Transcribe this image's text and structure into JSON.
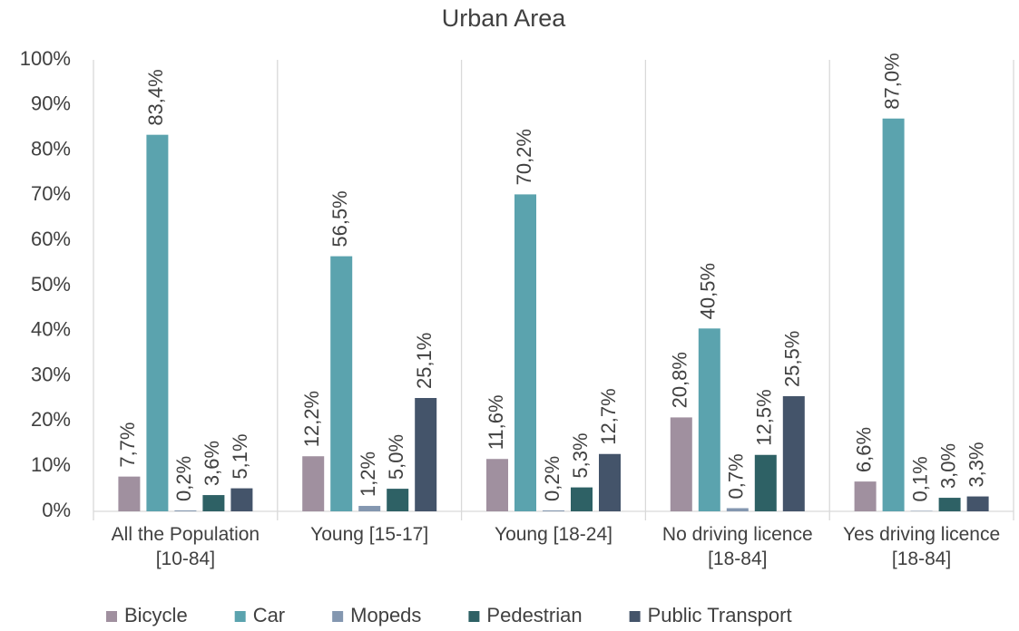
{
  "chart_data": {
    "type": "grouped_bar",
    "title": "Urban Area",
    "categories": [
      "All the Population\n[10-84]",
      "Young [15-17]",
      "Young [18-24]",
      "No driving licence\n[18-84]",
      "Yes driving licence\n[18-84]"
    ],
    "series": [
      {
        "name": "Bicycle",
        "color": "#a0909f",
        "values": [
          7.7,
          12.2,
          11.6,
          20.8,
          6.6
        ],
        "value_labels": [
          "7,7%",
          "12,2%",
          "11,6%",
          "20,8%",
          "6,6%"
        ]
      },
      {
        "name": "Car",
        "color": "#5ba3ae",
        "values": [
          83.4,
          56.5,
          70.2,
          40.5,
          87.0
        ],
        "value_labels": [
          "83,4%",
          "56,5%",
          "70,2%",
          "40,5%",
          "87,0%"
        ]
      },
      {
        "name": "Mopeds",
        "color": "#8497b0",
        "values": [
          0.2,
          1.2,
          0.2,
          0.7,
          0.1
        ],
        "value_labels": [
          "0,2%",
          "1,2%",
          "0,2%",
          "0,7%",
          "0,1%"
        ]
      },
      {
        "name": "Pedestrian",
        "color": "#2e6165",
        "values": [
          3.6,
          5.0,
          5.3,
          12.5,
          3.0
        ],
        "value_labels": [
          "3,6%",
          "5,0%",
          "5,3%",
          "12,5%",
          "3,0%"
        ]
      },
      {
        "name": "Public Transport",
        "color": "#44546a",
        "values": [
          5.1,
          25.1,
          12.7,
          25.5,
          3.3
        ],
        "value_labels": [
          "5,1%",
          "25,1%",
          "12,7%",
          "25,5%",
          "3,3%"
        ]
      }
    ],
    "ylim": [
      0,
      100
    ],
    "yticks": [
      {
        "value": 0,
        "label": "0%"
      },
      {
        "value": 10,
        "label": "10%"
      },
      {
        "value": 20,
        "label": "20%"
      },
      {
        "value": 30,
        "label": "30%"
      },
      {
        "value": 40,
        "label": "40%"
      },
      {
        "value": 50,
        "label": "50%"
      },
      {
        "value": 60,
        "label": "60%"
      },
      {
        "value": 70,
        "label": "70%"
      },
      {
        "value": 80,
        "label": "80%"
      },
      {
        "value": 90,
        "label": "90%"
      },
      {
        "value": 100,
        "label": "100%"
      }
    ],
    "legend": "bottom"
  }
}
